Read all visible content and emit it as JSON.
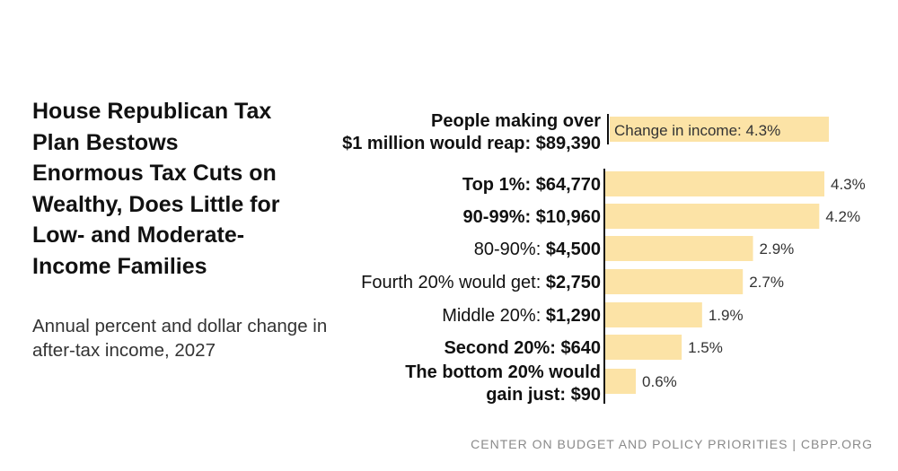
{
  "title": "House Republican Tax Plan Bestows Enormous Tax Cuts on Wealthy, Does Little for Low- and Moderate-Income Families",
  "subtitle": "Annual percent and dollar change in after-tax income, 2027",
  "source": "CENTER ON BUDGET AND POLICY PRIORITIES | CBPP.ORG",
  "colors": {
    "bar": "#fce3a6",
    "axis": "#111111",
    "text": "#111111"
  },
  "chart_data": {
    "type": "bar",
    "orientation": "horizontal",
    "xlim": [
      0,
      4.5
    ],
    "grid": false,
    "highlight": {
      "label_lines": [
        {
          "text": "People making over",
          "bold": true
        },
        {
          "text": "$1 million would reap: $89,390",
          "bold": true
        }
      ],
      "value": 4.3,
      "bar_label": "Change in income: 4.3%"
    },
    "bars": [
      {
        "label_lines": [
          {
            "text": "Top 1%: $64,770",
            "bold": true
          }
        ],
        "value": 4.3,
        "value_label": "4.3%"
      },
      {
        "label_lines": [
          {
            "text": "90-99%: $10,960",
            "bold": true
          }
        ],
        "value": 4.2,
        "value_label": "4.2%"
      },
      {
        "label_lines": [
          {
            "text": "80-90%: ",
            "bold": false,
            "suffix": "$4,500"
          }
        ],
        "value": 2.9,
        "value_label": "2.9%"
      },
      {
        "label_lines": [
          {
            "text": "Fourth 20% would get: ",
            "bold": false,
            "suffix": "$2,750"
          }
        ],
        "value": 2.7,
        "value_label": "2.7%"
      },
      {
        "label_lines": [
          {
            "text": "Middle 20%: ",
            "bold": false,
            "suffix": "$1,290"
          }
        ],
        "value": 1.9,
        "value_label": "1.9%"
      },
      {
        "label_lines": [
          {
            "text": "Second 20%: $640",
            "bold": true
          }
        ],
        "value": 1.5,
        "value_label": "1.5%"
      },
      {
        "label_lines": [
          {
            "text": "The bottom 20% would",
            "bold": true
          },
          {
            "text": "gain just: $90",
            "bold": true
          }
        ],
        "value": 0.6,
        "value_label": "0.6%"
      }
    ]
  }
}
